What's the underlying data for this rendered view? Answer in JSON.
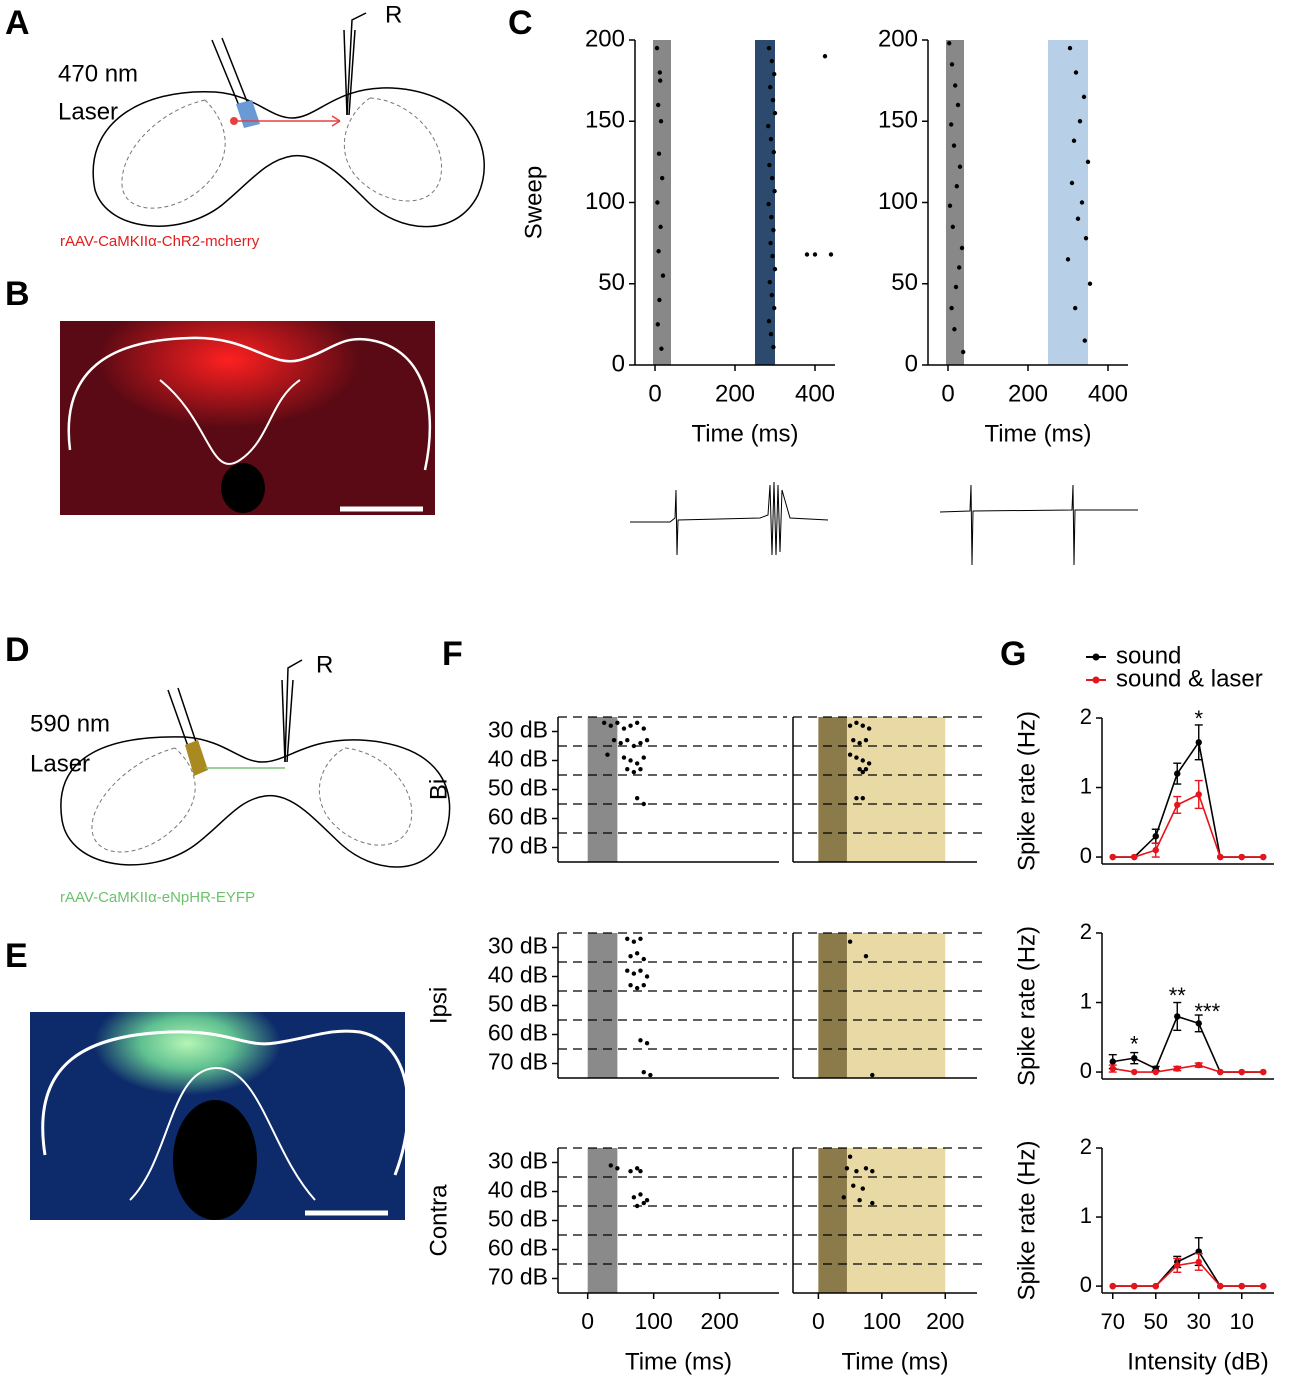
{
  "panels": {
    "A": {
      "label": "A",
      "recording": "R",
      "laser": [
        "470 nm",
        "Laser"
      ],
      "virus": "rAAV-CaMKIIα-ChR2-mcherry"
    },
    "B": {
      "label": "B"
    },
    "C": {
      "label": "C"
    },
    "D": {
      "label": "D",
      "recording": "R",
      "laser": [
        "590 nm",
        "Laser"
      ],
      "virus": "rAAV-CaMKIIα-eNpHR-EYFP"
    },
    "E": {
      "label": "E"
    },
    "F": {
      "label": "F"
    },
    "G": {
      "label": "G"
    }
  },
  "chart_data": [
    {
      "type": "raster",
      "ylabel": "Sweep",
      "xlabel": "Time (ms)",
      "xlim": [
        -50,
        450
      ],
      "xticks": [
        0,
        200,
        400
      ],
      "ylim": [
        0,
        200
      ],
      "yticks": [
        0,
        50,
        100,
        150,
        200
      ],
      "shades": [
        {
          "start": -5,
          "end": 40,
          "color": "#888888"
        },
        {
          "start": 250,
          "end": 300,
          "color": "#2c4a6e"
        }
      ],
      "color": "#000000",
      "x": [
        5,
        12,
        8,
        15,
        10,
        18,
        6,
        14,
        9,
        20,
        11,
        7,
        16,
        13,
        285,
        292,
        298,
        288,
        295,
        300,
        283,
        290,
        297,
        286,
        293,
        299,
        284,
        291,
        296,
        289,
        294,
        300,
        287,
        292,
        298,
        285,
        290,
        296,
        380,
        400,
        440,
        425
      ],
      "values": [
        195,
        180,
        160,
        150,
        130,
        115,
        100,
        85,
        70,
        55,
        40,
        25,
        10,
        175,
        195,
        187,
        179,
        171,
        163,
        155,
        147,
        139,
        131,
        123,
        115,
        107,
        99,
        91,
        83,
        75,
        67,
        59,
        51,
        43,
        35,
        27,
        19,
        11,
        68,
        68,
        68,
        190
      ]
    },
    {
      "type": "raster",
      "xlabel": "Time (ms)",
      "xlim": [
        -50,
        450
      ],
      "xticks": [
        0,
        200,
        400
      ],
      "ylim": [
        0,
        200
      ],
      "yticks": [
        0,
        50,
        100,
        150,
        200
      ],
      "shades": [
        {
          "start": -5,
          "end": 40,
          "color": "#888888"
        },
        {
          "start": 250,
          "end": 350,
          "color": "#b8cfe8"
        }
      ],
      "color": "#000000",
      "x": [
        3,
        10,
        18,
        25,
        8,
        15,
        30,
        22,
        5,
        12,
        35,
        28,
        20,
        9,
        16,
        38,
        305,
        320,
        340,
        330,
        315,
        350,
        310,
        335,
        325,
        345,
        300,
        355,
        318,
        342
      ],
      "values": [
        198,
        185,
        172,
        160,
        148,
        135,
        122,
        110,
        98,
        85,
        72,
        60,
        48,
        35,
        22,
        8,
        195,
        180,
        165,
        150,
        138,
        125,
        112,
        100,
        90,
        78,
        65,
        50,
        35,
        15
      ]
    },
    {
      "type": "raster",
      "ylabel": "Bi",
      "xlim": [
        -45,
        290
      ],
      "ylim": [
        75,
        25
      ],
      "yticks": [
        {
          "value": 30,
          "label": "30 dB"
        },
        {
          "value": 40,
          "label": "40 dB"
        },
        {
          "value": 50,
          "label": "50 dB"
        },
        {
          "value": 60,
          "label": "60 dB"
        },
        {
          "value": 70,
          "label": "70 dB"
        }
      ],
      "grid_lines": [
        25,
        35,
        45,
        55,
        65
      ],
      "shades": [
        {
          "start": 0,
          "end": 45,
          "color": "#8a8a8a"
        }
      ],
      "color": "#000000",
      "x": [
        25,
        35,
        45,
        55,
        65,
        75,
        85,
        40,
        50,
        60,
        70,
        80,
        90,
        30,
        55,
        65,
        75,
        85,
        60,
        70,
        80,
        75,
        85
      ],
      "values": [
        27,
        28,
        27,
        29,
        28,
        27,
        29,
        33,
        34,
        33,
        35,
        34,
        33,
        38,
        39,
        40,
        41,
        39,
        43,
        44,
        43,
        53,
        55
      ]
    },
    {
      "type": "raster",
      "xlim": [
        -40,
        250
      ],
      "ylim": [
        75,
        25
      ],
      "grid_lines": [
        25,
        35,
        45,
        55,
        65
      ],
      "shades": [
        {
          "start": 0,
          "end": 200,
          "color": "#e8d9a5"
        },
        {
          "start": 0,
          "end": 45,
          "color": "#8b7a4a"
        }
      ],
      "color": "#000000",
      "x": [
        50,
        60,
        70,
        80,
        55,
        65,
        75,
        50,
        60,
        70,
        80,
        65,
        70,
        75,
        60,
        70
      ],
      "values": [
        28,
        27,
        28,
        29,
        33,
        34,
        33,
        38,
        39,
        40,
        41,
        43,
        44,
        43,
        53,
        53
      ]
    },
    {
      "type": "raster",
      "ylabel": "Ipsi",
      "xlim": [
        -45,
        290
      ],
      "ylim": [
        75,
        25
      ],
      "yticks": [
        {
          "value": 30,
          "label": "30 dB"
        },
        {
          "value": 40,
          "label": "40 dB"
        },
        {
          "value": 50,
          "label": "50 dB"
        },
        {
          "value": 60,
          "label": "60 dB"
        },
        {
          "value": 70,
          "label": "70 dB"
        }
      ],
      "grid_lines": [
        25,
        35,
        45,
        55,
        65
      ],
      "shades": [
        {
          "start": 0,
          "end": 45,
          "color": "#8a8a8a"
        }
      ],
      "color": "#000000",
      "x": [
        60,
        70,
        80,
        65,
        75,
        85,
        60,
        70,
        80,
        90,
        65,
        75,
        85,
        80,
        90,
        85,
        95
      ],
      "values": [
        27,
        28,
        27,
        33,
        32,
        34,
        38,
        39,
        38,
        40,
        43,
        44,
        43,
        62,
        63,
        73,
        74
      ]
    },
    {
      "type": "raster",
      "xlim": [
        -40,
        250
      ],
      "ylim": [
        75,
        25
      ],
      "grid_lines": [
        25,
        35,
        45,
        55,
        65
      ],
      "shades": [
        {
          "start": 0,
          "end": 200,
          "color": "#e8d9a5"
        },
        {
          "start": 0,
          "end": 45,
          "color": "#8b7a4a"
        }
      ],
      "color": "#000000",
      "x": [
        50,
        75,
        85
      ],
      "values": [
        28,
        33,
        74
      ]
    },
    {
      "type": "raster",
      "ylabel": "Contra",
      "xlabel": "Time (ms)",
      "xlim": [
        -45,
        290
      ],
      "xticks": [
        0,
        100,
        200
      ],
      "ylim": [
        75,
        25
      ],
      "yticks": [
        {
          "value": 30,
          "label": "30 dB"
        },
        {
          "value": 40,
          "label": "40 dB"
        },
        {
          "value": 50,
          "label": "50 dB"
        },
        {
          "value": 60,
          "label": "60 dB"
        },
        {
          "value": 70,
          "label": "70 dB"
        }
      ],
      "grid_lines": [
        25,
        35,
        45,
        55,
        65
      ],
      "shades": [
        {
          "start": 0,
          "end": 45,
          "color": "#8a8a8a"
        }
      ],
      "color": "#000000",
      "x": [
        35,
        45,
        65,
        75,
        80,
        70,
        80,
        90,
        75,
        85
      ],
      "values": [
        31,
        32,
        33,
        32,
        33,
        42,
        41,
        43,
        45,
        44
      ]
    },
    {
      "type": "raster",
      "xlabel": "Time (ms)",
      "xlim": [
        -40,
        250
      ],
      "xticks": [
        0,
        100,
        200
      ],
      "ylim": [
        75,
        25
      ],
      "grid_lines": [
        25,
        35,
        45,
        55,
        65
      ],
      "shades": [
        {
          "start": 0,
          "end": 200,
          "color": "#e8d9a5"
        },
        {
          "start": 0,
          "end": 45,
          "color": "#8b7a4a"
        }
      ],
      "color": "#000000",
      "x": [
        50,
        45,
        60,
        75,
        85,
        55,
        70,
        40,
        65,
        85
      ],
      "values": [
        28,
        32,
        33,
        32,
        33,
        38,
        39,
        42,
        43,
        44
      ]
    },
    {
      "type": "line",
      "ylabel": "Spike rate (Hz)",
      "legend": "top",
      "xlim": [
        75,
        -5
      ],
      "ylim": [
        -0.1,
        2
      ],
      "yticks": [
        0,
        1,
        2
      ],
      "x": [
        70,
        60,
        50,
        40,
        30,
        20,
        10,
        0
      ],
      "series": [
        {
          "name": "sound",
          "color": "#000000",
          "values": [
            0,
            0,
            0.3,
            1.2,
            1.65,
            0,
            0,
            0
          ],
          "errors": [
            0,
            0,
            0.1,
            0.15,
            0.25,
            0,
            0,
            0
          ]
        },
        {
          "name": "sound & laser",
          "color": "#e8141b",
          "values": [
            0,
            0,
            0.1,
            0.75,
            0.9,
            0,
            0,
            0
          ],
          "errors": [
            0,
            0,
            0.1,
            0.12,
            0.2,
            0,
            0,
            0
          ]
        }
      ],
      "annotations": [
        {
          "text": "*",
          "x": 30,
          "y": 1.97
        }
      ]
    },
    {
      "type": "line",
      "ylabel": "Spike rate (Hz)",
      "xlim": [
        75,
        -5
      ],
      "ylim": [
        -0.1,
        2
      ],
      "yticks": [
        0,
        1,
        2
      ],
      "x": [
        70,
        60,
        50,
        40,
        30,
        20,
        10,
        0
      ],
      "series": [
        {
          "name": "sound",
          "color": "#000000",
          "values": [
            0.15,
            0.2,
            0.05,
            0.8,
            0.7,
            0,
            0,
            0
          ],
          "errors": [
            0.1,
            0.08,
            0.03,
            0.2,
            0.12,
            0,
            0,
            0
          ]
        },
        {
          "name": "sound & laser",
          "color": "#e8141b",
          "values": [
            0.05,
            0,
            0,
            0.05,
            0.1,
            0,
            0,
            0
          ],
          "errors": [
            0.05,
            0,
            0,
            0.03,
            0.03,
            0,
            0,
            0
          ]
        }
      ],
      "annotations": [
        {
          "text": "*",
          "x": 60,
          "y": 0.38
        },
        {
          "text": "**",
          "x": 40,
          "y": 1.08
        },
        {
          "text": "***",
          "x": 26,
          "y": 0.85
        }
      ]
    },
    {
      "type": "line",
      "ylabel": "Spike rate (Hz)",
      "xlabel": "Intensity (dB)",
      "xlim": [
        75,
        -5
      ],
      "ylim": [
        -0.1,
        2
      ],
      "yticks": [
        0,
        1,
        2
      ],
      "xticks": [
        70,
        50,
        30,
        10
      ],
      "x": [
        70,
        60,
        50,
        40,
        30,
        20,
        10,
        0
      ],
      "series": [
        {
          "name": "sound",
          "color": "#000000",
          "values": [
            0,
            0,
            0,
            0.35,
            0.5,
            0,
            0,
            0
          ],
          "errors": [
            0,
            0,
            0,
            0.08,
            0.2,
            0,
            0,
            0
          ]
        },
        {
          "name": "sound & laser",
          "color": "#e8141b",
          "values": [
            0,
            0,
            0,
            0.3,
            0.35,
            0,
            0,
            0
          ],
          "errors": [
            0,
            0,
            0,
            0.1,
            0.12,
            0,
            0,
            0
          ]
        }
      ]
    }
  ]
}
